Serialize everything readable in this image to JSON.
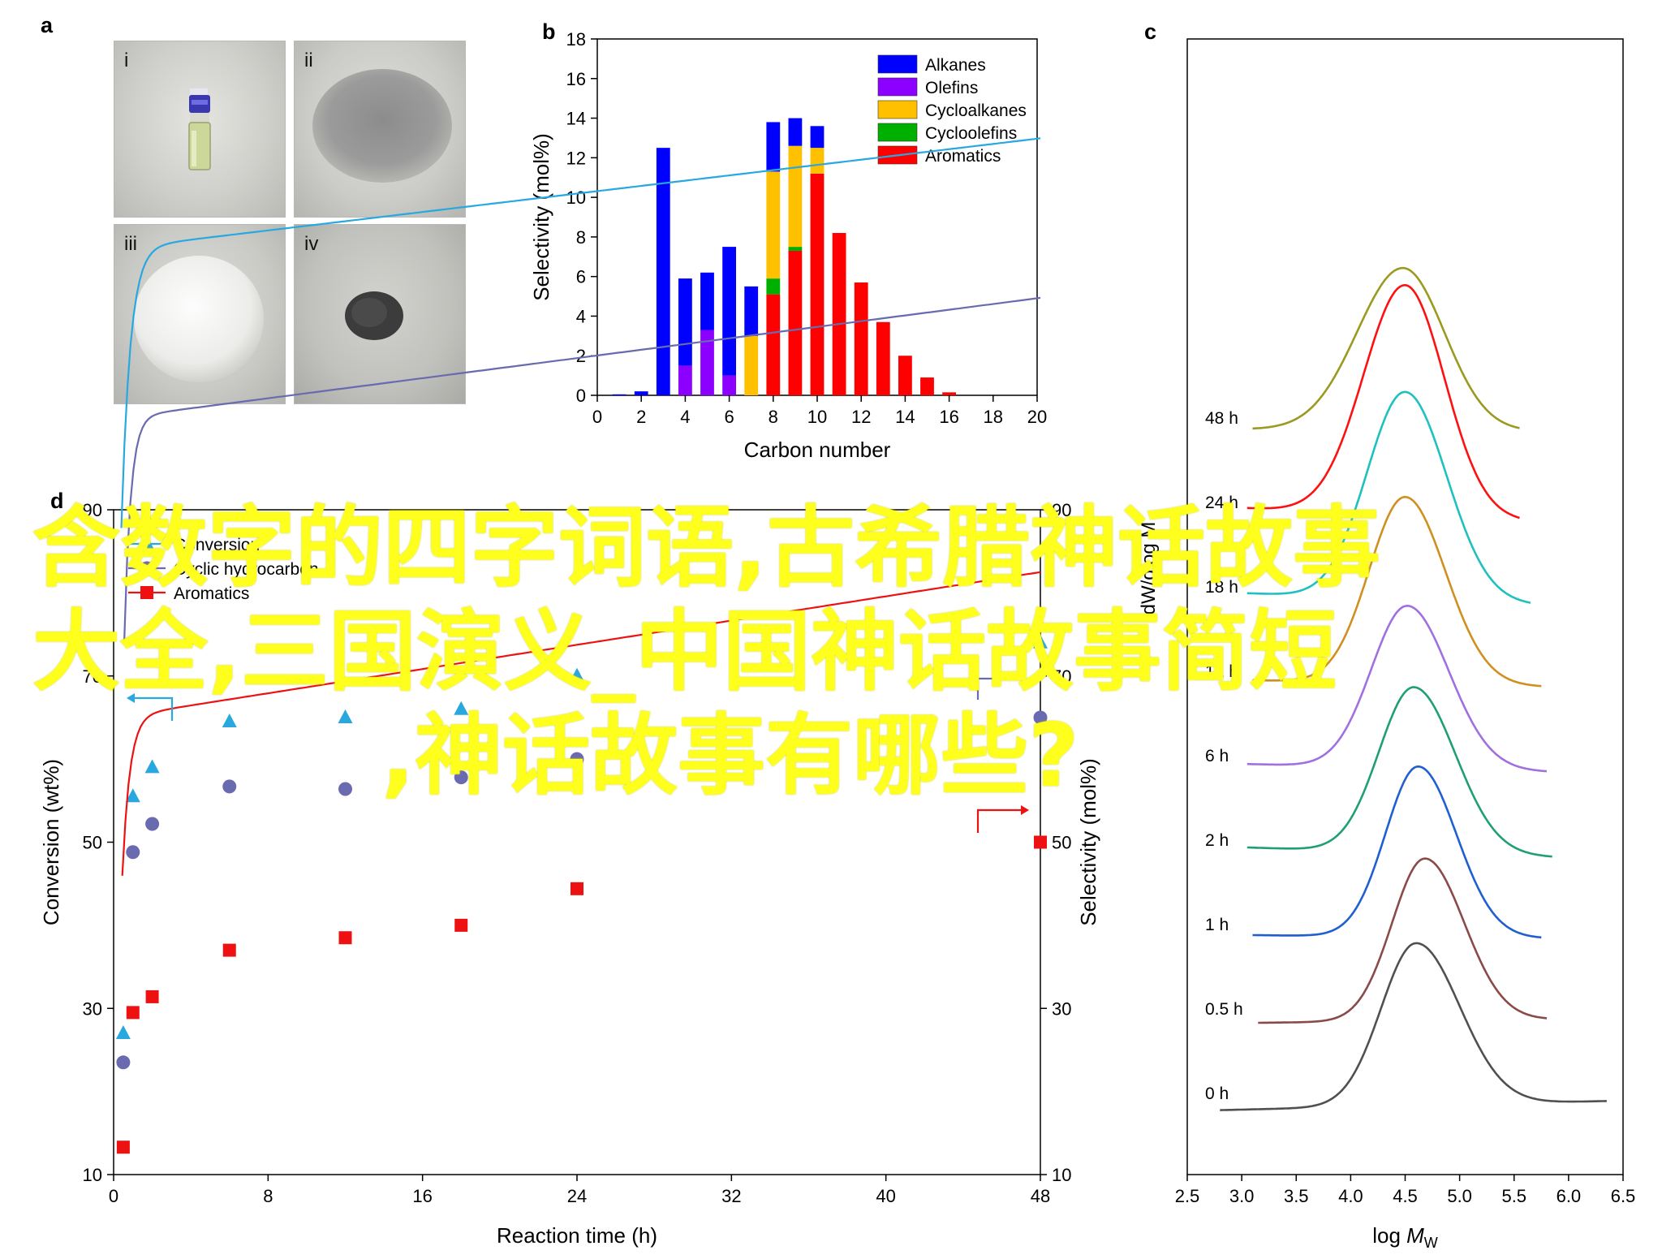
{
  "panels": {
    "a": "a",
    "b": "b",
    "c": "c",
    "d": "d"
  },
  "photos": [
    {
      "tag": "i",
      "subject": "vial-liquid"
    },
    {
      "tag": "ii",
      "subject": "grey-powder"
    },
    {
      "tag": "iii",
      "subject": "white-powder"
    },
    {
      "tag": "iv",
      "subject": "dark-powder"
    }
  ],
  "overlay": {
    "line1": "含数字的四字词语,古希腊神话故事",
    "line2": "大全,三国演义_中国神话故事简短",
    "line3": ",神话故事有哪些?",
    "color": "#ffff1e"
  },
  "chart_data": [
    {
      "id": "b",
      "type": "bar",
      "stacked": true,
      "xlabel": "Carbon number",
      "ylabel": "Selectivity (mol%)",
      "xlim": [
        0,
        20
      ],
      "ylim": [
        0,
        18
      ],
      "xticks": [
        0,
        2,
        4,
        6,
        8,
        10,
        12,
        14,
        16,
        18,
        20
      ],
      "yticks": [
        0,
        2,
        4,
        6,
        8,
        10,
        12,
        14,
        16,
        18
      ],
      "legend_position": "top-right",
      "categories": [
        1,
        2,
        3,
        4,
        5,
        6,
        7,
        8,
        9,
        10,
        11,
        12,
        13,
        14,
        15,
        16,
        17
      ],
      "series": [
        {
          "name": "Aromatics",
          "color": "#ff0000",
          "values": [
            0,
            0,
            0,
            0,
            0,
            0,
            0,
            5.1,
            7.3,
            11.2,
            8.2,
            5.7,
            3.7,
            2.0,
            0.9,
            0.15,
            0
          ]
        },
        {
          "name": "Cycloolefins",
          "color": "#00b000",
          "values": [
            0,
            0,
            0,
            0,
            0,
            0,
            0,
            0.8,
            0.2,
            0,
            0,
            0,
            0,
            0,
            0,
            0,
            0
          ]
        },
        {
          "name": "Cycloalkanes",
          "color": "#ffc000",
          "values": [
            0,
            0,
            0,
            0,
            0,
            0,
            3.0,
            5.4,
            5.1,
            1.3,
            0,
            0,
            0,
            0,
            0,
            0,
            0
          ]
        },
        {
          "name": "Olefins",
          "color": "#8b00ff",
          "values": [
            0,
            0,
            0,
            1.5,
            3.3,
            1.0,
            0,
            0,
            0,
            0,
            0,
            0,
            0,
            0,
            0,
            0,
            0
          ]
        },
        {
          "name": "Alkanes",
          "color": "#0000ff",
          "values": [
            0.05,
            0.2,
            12.5,
            4.4,
            2.9,
            6.5,
            2.5,
            2.5,
            1.4,
            1.1,
            0,
            0,
            0,
            0,
            0,
            0,
            0
          ]
        }
      ],
      "legend_order": [
        "Alkanes",
        "Olefins",
        "Cycloalkanes",
        "Cycloolefins",
        "Aromatics"
      ]
    },
    {
      "id": "c",
      "type": "line",
      "xlabel_prefix": "log ",
      "xlabel_var": "M",
      "xlabel_sub": "W",
      "ylabel": "dW/dlog M",
      "xlim": [
        2.5,
        6.5
      ],
      "xticks": [
        2.5,
        3.0,
        3.5,
        4.0,
        4.5,
        5.0,
        5.5,
        6.0,
        6.5
      ],
      "series": [
        {
          "name": "0 h",
          "color": "#505050",
          "offset": 0,
          "peak": 4.6,
          "height": 1.0,
          "start": 2.8,
          "end": 6.35,
          "sl": 0.32,
          "sr": 0.4,
          "floor": -0.14
        },
        {
          "name": "0.5 h",
          "color": "#8b4a4a",
          "offset": 1,
          "peak": 4.68,
          "height": 1.0,
          "start": 3.15,
          "end": 5.8,
          "sl": 0.3,
          "sr": 0.36,
          "floor": -0.05
        },
        {
          "name": "1 h",
          "color": "#1f5fd0",
          "offset": 2,
          "peak": 4.62,
          "height": 1.05,
          "start": 3.1,
          "end": 5.75,
          "sl": 0.3,
          "sr": 0.35,
          "floor": 0.05
        },
        {
          "name": "2 h",
          "color": "#20a070",
          "offset": 3,
          "peak": 4.58,
          "height": 1.02,
          "start": 3.05,
          "end": 5.85,
          "sl": 0.32,
          "sr": 0.38,
          "floor": 0.15
        },
        {
          "name": "6 h",
          "color": "#a070e0",
          "offset": 4,
          "peak": 4.52,
          "height": 1.0,
          "start": 3.05,
          "end": 5.8,
          "sl": 0.33,
          "sr": 0.38,
          "floor": 0.12
        },
        {
          "name": "12 h",
          "color": "#d09020",
          "offset": 5,
          "peak": 4.5,
          "height": 1.15,
          "start": 3.1,
          "end": 5.75,
          "sl": 0.33,
          "sr": 0.37,
          "floor": 0.1
        },
        {
          "name": "18 h",
          "color": "#20c0c0",
          "offset": 6,
          "peak": 4.5,
          "height": 1.28,
          "start": 3.05,
          "end": 5.65,
          "sl": 0.35,
          "sr": 0.38,
          "floor": 0.18
        },
        {
          "name": "24 h",
          "color": "#ff1010",
          "offset": 7,
          "peak": 4.5,
          "height": 1.42,
          "start": 3.05,
          "end": 5.55,
          "sl": 0.38,
          "sr": 0.36,
          "floor": 0.2
        },
        {
          "name": "48 h",
          "color": "#9a9a20",
          "offset": 8,
          "peak": 4.48,
          "height": 1.0,
          "start": 3.1,
          "end": 5.55,
          "sl": 0.42,
          "sr": 0.38,
          "floor": 0.03
        }
      ]
    },
    {
      "id": "d",
      "type": "scatter",
      "xlabel": "Reaction time (h)",
      "ylabel_left": "Conversion (wt%)",
      "ylabel_right": "Selectivity (mol%)",
      "xlim": [
        0,
        48
      ],
      "ylim": [
        10,
        90
      ],
      "xticks": [
        0,
        8,
        16,
        24,
        32,
        40,
        48
      ],
      "yticks": [
        10,
        30,
        50,
        70,
        90
      ],
      "legend_position": "top-left",
      "series": [
        {
          "name": "Conversion",
          "color": "#29a8e0",
          "marker": "triangle",
          "axis": "left",
          "x": [
            0.5,
            1,
            2,
            6,
            12,
            18,
            24,
            48
          ],
          "y": [
            27,
            55.5,
            59,
            64.5,
            65,
            66,
            70,
            74
          ],
          "fit": {
            "a": 60.7,
            "b": 3.5,
            "k": 2.2,
            "x0": 0.4
          }
        },
        {
          "name": "Cyclic hydrocarbon",
          "color": "#6a6ab0",
          "marker": "circle",
          "axis": "right",
          "x": [
            0.5,
            1,
            2,
            6,
            12,
            18,
            24,
            48
          ],
          "y": [
            23.5,
            48.8,
            52.2,
            56.7,
            56.4,
            57.8,
            60,
            65
          ],
          "fit": {
            "a": 50.5,
            "b": 4.5,
            "k": 3.0,
            "x0": 0.55
          }
        },
        {
          "name": "Aromatics",
          "color": "#ee1111",
          "marker": "square",
          "axis": "right",
          "x": [
            0.5,
            1,
            2,
            6,
            12,
            18,
            24,
            48
          ],
          "y": [
            13.3,
            29.5,
            31.4,
            37,
            38.5,
            40,
            44.4,
            50
          ],
          "fit": {
            "a": 32.5,
            "b": 5.4,
            "k": 2.6,
            "x0": 0.45
          }
        }
      ]
    }
  ]
}
